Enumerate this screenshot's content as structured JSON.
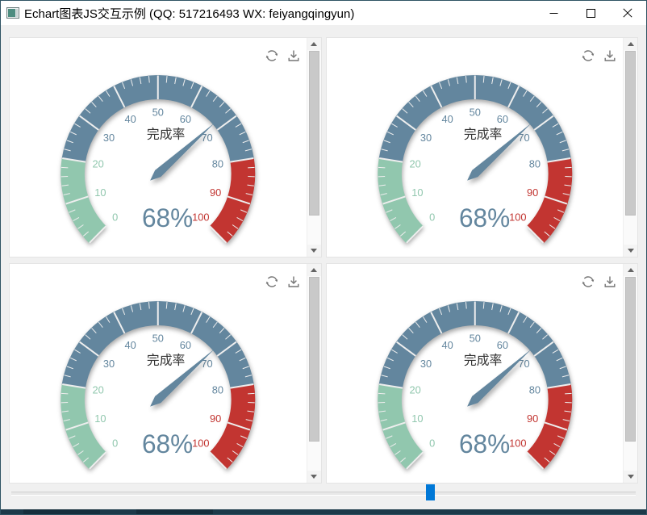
{
  "window": {
    "title": "Echart图表JS交互示例 (QQ: 517216493 WX: feiyangqingyun)"
  },
  "titlebar_controls": {
    "minimize": "minimize",
    "maximize": "maximize",
    "close": "close"
  },
  "toolbox": {
    "refresh": "refresh",
    "save_as_image": "save-as-image"
  },
  "slider": {
    "position_pct": 66.5
  },
  "colors": {
    "segment_green": "#91c7ae",
    "segment_blue": "#63869e",
    "segment_red": "#c23531",
    "tick": "#eeeeee",
    "title_text": "#333333",
    "slider_handle": "#0078d7",
    "window_border": "#2f5363"
  },
  "chart_data": [
    {
      "type": "gauge",
      "title": "完成率",
      "value": 68,
      "detail": "68%",
      "min": 0,
      "max": 100,
      "start_angle": 225,
      "end_angle": -45,
      "axis_labels": [
        "0",
        "10",
        "20",
        "30",
        "40",
        "50",
        "60",
        "70",
        "80",
        "90",
        "100"
      ],
      "segments": [
        {
          "upto": 20,
          "color": "#91c7ae"
        },
        {
          "upto": 80,
          "color": "#63869e"
        },
        {
          "upto": 100,
          "color": "#c23531"
        }
      ],
      "tick_color": "#eeeeee",
      "title_color": "#333333",
      "needle_color": "#63869e",
      "detail_color": "#63869e"
    },
    {
      "type": "gauge",
      "title": "完成率",
      "value": 68,
      "detail": "68%",
      "min": 0,
      "max": 100,
      "start_angle": 225,
      "end_angle": -45,
      "axis_labels": [
        "0",
        "10",
        "20",
        "30",
        "40",
        "50",
        "60",
        "70",
        "80",
        "90",
        "100"
      ],
      "segments": [
        {
          "upto": 20,
          "color": "#91c7ae"
        },
        {
          "upto": 80,
          "color": "#63869e"
        },
        {
          "upto": 100,
          "color": "#c23531"
        }
      ],
      "tick_color": "#eeeeee",
      "title_color": "#333333",
      "needle_color": "#63869e",
      "detail_color": "#63869e"
    },
    {
      "type": "gauge",
      "title": "完成率",
      "value": 68,
      "detail": "68%",
      "min": 0,
      "max": 100,
      "start_angle": 225,
      "end_angle": -45,
      "axis_labels": [
        "0",
        "10",
        "20",
        "30",
        "40",
        "50",
        "60",
        "70",
        "80",
        "90",
        "100"
      ],
      "segments": [
        {
          "upto": 20,
          "color": "#91c7ae"
        },
        {
          "upto": 80,
          "color": "#63869e"
        },
        {
          "upto": 100,
          "color": "#c23531"
        }
      ],
      "tick_color": "#eeeeee",
      "title_color": "#333333",
      "needle_color": "#63869e",
      "detail_color": "#63869e"
    },
    {
      "type": "gauge",
      "title": "完成率",
      "value": 68,
      "detail": "68%",
      "min": 0,
      "max": 100,
      "start_angle": 225,
      "end_angle": -45,
      "axis_labels": [
        "0",
        "10",
        "20",
        "30",
        "40",
        "50",
        "60",
        "70",
        "80",
        "90",
        "100"
      ],
      "segments": [
        {
          "upto": 20,
          "color": "#91c7ae"
        },
        {
          "upto": 80,
          "color": "#63869e"
        },
        {
          "upto": 100,
          "color": "#c23531"
        }
      ],
      "tick_color": "#eeeeee",
      "title_color": "#333333",
      "needle_color": "#63869e",
      "detail_color": "#63869e"
    }
  ]
}
